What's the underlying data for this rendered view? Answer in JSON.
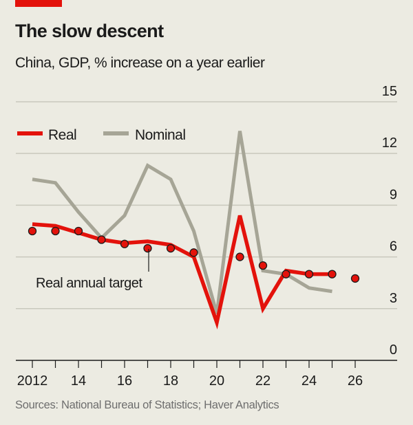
{
  "header": {
    "title": "The slow descent",
    "subtitle": "China, GDP, % increase on a year earlier"
  },
  "footer": {
    "source": "Sources: National Bureau of Statistics; Haver Analytics"
  },
  "colors": {
    "accent": "#e3120b",
    "real": "#e3120b",
    "nominal": "#a6a596",
    "target_fill": "#e3120b",
    "background": "#ecebe2",
    "grid": "#c9c8bd"
  },
  "chart_data": {
    "type": "line",
    "title": "The slow descent",
    "subtitle": "China, GDP, % increase on a year earlier",
    "x": [
      2012,
      2013,
      2014,
      2015,
      2016,
      2017,
      2018,
      2019,
      2020,
      2021,
      2022,
      2023,
      2024,
      2025
    ],
    "x_tick_values": [
      2012,
      2014,
      2016,
      2018,
      2020,
      2022,
      2024,
      2026
    ],
    "x_tick_labels": [
      "2012",
      "14",
      "16",
      "18",
      "20",
      "22",
      "24",
      "26"
    ],
    "xlim": [
      2012,
      2026
    ],
    "ylim": [
      0,
      15
    ],
    "y_ticks": [
      0,
      3,
      6,
      9,
      12,
      15
    ],
    "y_tick_labels": [
      "0",
      "3",
      "6",
      "9",
      "12",
      "15"
    ],
    "y_axis_side": "right",
    "grid": true,
    "legend_position": "top-left",
    "series": [
      {
        "name": "Real",
        "color": "#e3120b",
        "values": [
          7.9,
          7.8,
          7.4,
          7.0,
          6.8,
          6.9,
          6.7,
          6.0,
          2.2,
          8.4,
          3.0,
          5.2,
          5.0,
          5.0
        ]
      },
      {
        "name": "Nominal",
        "color": "#a6a596",
        "values": [
          10.5,
          10.3,
          8.6,
          7.1,
          8.4,
          11.3,
          10.5,
          7.5,
          2.7,
          13.3,
          5.2,
          5.0,
          4.2,
          4.0
        ]
      }
    ],
    "targets": {
      "label": "Real annual target",
      "x": [
        2012,
        2013,
        2014,
        2015,
        2016,
        2017,
        2018,
        2019,
        2021,
        2022,
        2023,
        2024,
        2025,
        2026
      ],
      "values": [
        7.5,
        7.5,
        7.5,
        7.0,
        6.75,
        6.5,
        6.5,
        6.25,
        6.0,
        5.5,
        5.0,
        5.0,
        5.0,
        4.75
      ]
    }
  }
}
